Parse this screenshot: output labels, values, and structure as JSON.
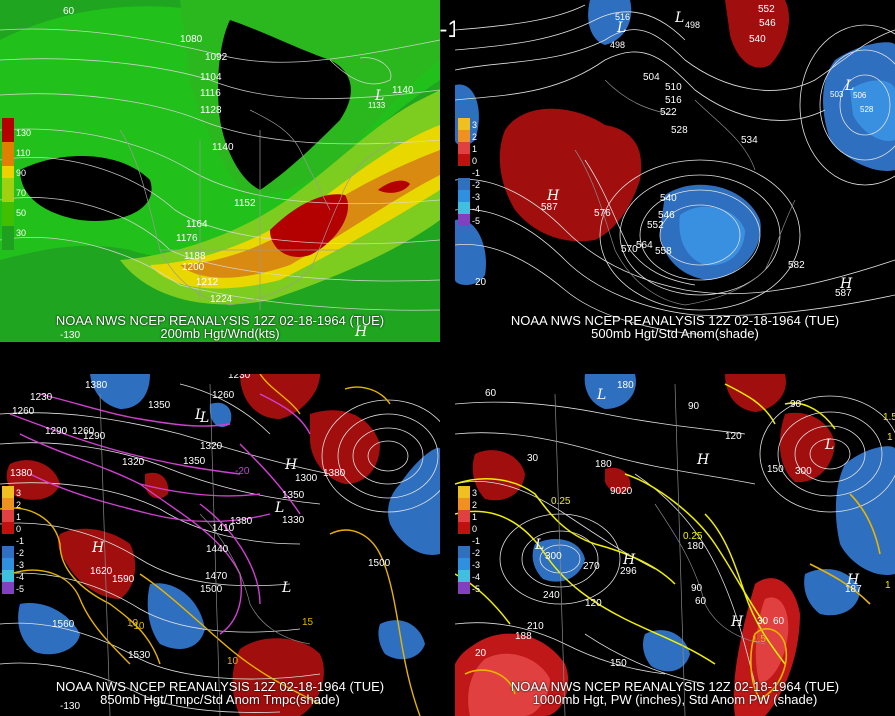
{
  "header": {
    "title": "12Z 02-18-1964 (TUE)"
  },
  "panels": [
    {
      "caption1": "NOAA NWS NCEP REANALYSIS 12Z 02-18-1964 (TUE)",
      "caption2": "200mb Hgt/Wnd(kts)",
      "legend": [
        "130",
        "110",
        "90",
        "70",
        "50",
        "30"
      ],
      "legend_colors": [
        "#b40000",
        "#e08000",
        "#f0d000",
        "#a0d010",
        "#40c000",
        "#20a020"
      ],
      "contour_labels": [
        "1080",
        "1092",
        "1104",
        "1116",
        "1128",
        "1140",
        "1152",
        "1164",
        "1176",
        "1188",
        "1200",
        "1212",
        "1224",
        "1140",
        "1133"
      ]
    },
    {
      "caption1": "NOAA NWS NCEP REANALYSIS 12Z 02-18-1964 (TUE)",
      "caption2": "500mb Hgt/Std Anom(shade)",
      "legend": [
        "3",
        "2",
        "1",
        "0",
        "-1",
        "-2",
        "-3",
        "-4",
        "-5"
      ],
      "legend_colors": [
        "#f0c020",
        "#f09020",
        "#e04040",
        "#c01010",
        "#000000",
        "#3070c0",
        "#3090e0",
        "#40c0e0",
        "#8040c0"
      ],
      "contour_labels": [
        "504",
        "510",
        "516",
        "522",
        "528",
        "534",
        "540",
        "546",
        "552",
        "558",
        "564",
        "570",
        "576",
        "582",
        "587",
        "581",
        "498",
        "516",
        "552",
        "540",
        "546",
        "503",
        "506"
      ]
    },
    {
      "caption1": "NOAA NWS NCEP REANALYSIS 12Z 02-18-1964 (TUE)",
      "caption2": "850mb Hgt/Tmpc/Std Anom Tmpc(shade)",
      "legend": [
        "3",
        "2",
        "1",
        "0",
        "-1",
        "-2",
        "-3",
        "-4",
        "-5"
      ],
      "legend_colors": [
        "#f0c020",
        "#f09020",
        "#e04040",
        "#c01010",
        "#000000",
        "#3070c0",
        "#3090e0",
        "#40c0e0",
        "#8040c0"
      ],
      "contour_labels": [
        "1380",
        "1260",
        "1350",
        "1290",
        "1320",
        "1230",
        "1260",
        "1320",
        "1350",
        "1410",
        "1380",
        "1440",
        "1470",
        "1500",
        "1620",
        "1590",
        "1560",
        "1530",
        "1500",
        "1380",
        "1300",
        "1330",
        "1350",
        "1290",
        "-10",
        "10",
        "15",
        "20",
        "-5",
        "-10",
        "-15"
      ]
    },
    {
      "caption1": "NOAA NWS NCEP REANALYSIS 12Z 02-18-1964 (TUE)",
      "caption2": "1000mb Hgt, PW (inches), Std Anom PW (shade)",
      "legend": [
        "3",
        "2",
        "1",
        "0",
        "-1",
        "-2",
        "-3",
        "-4",
        "-5"
      ],
      "legend_colors": [
        "#f0c020",
        "#f09020",
        "#e04040",
        "#c01010",
        "#000000",
        "#3070c0",
        "#3090e0",
        "#40c0e0",
        "#8040c0"
      ],
      "contour_labels": [
        "180",
        "60",
        "30",
        "120",
        "90",
        "150",
        "180",
        "210",
        "240",
        "270",
        "300",
        "150",
        "120",
        "90",
        "60",
        "0.5",
        "0.25",
        "1",
        "1.5",
        "0.75",
        "180",
        "296",
        "9020",
        "187"
      ]
    }
  ]
}
